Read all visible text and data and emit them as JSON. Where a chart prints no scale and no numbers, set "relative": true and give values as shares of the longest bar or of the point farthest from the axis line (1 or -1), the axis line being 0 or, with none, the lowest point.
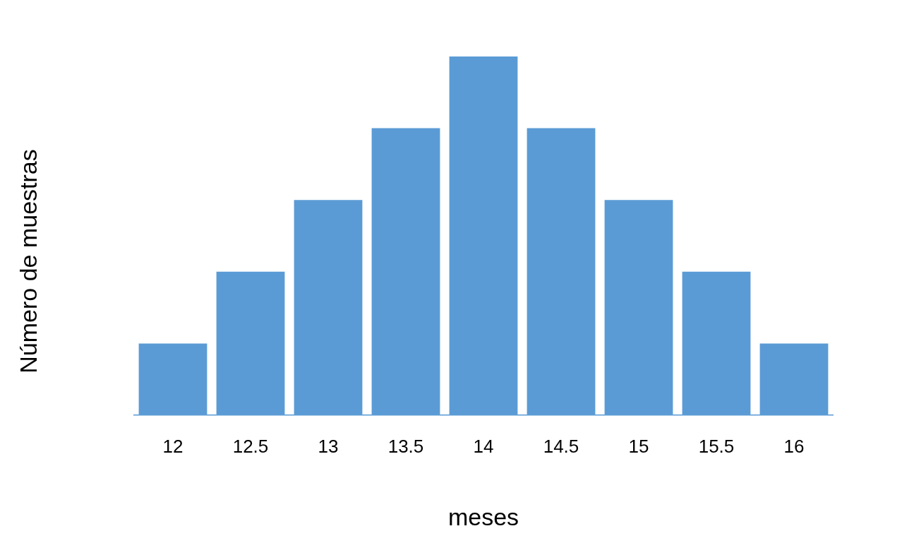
{
  "chart_data": {
    "type": "bar",
    "relative": true,
    "xlabel": "meses",
    "ylabel": "Número de muestras",
    "categories": [
      "12",
      "12.5",
      "13",
      "13.5",
      "14",
      "14.5",
      "15",
      "15.5",
      "16"
    ],
    "values": [
      0.2,
      0.4,
      0.6,
      0.8,
      1,
      0.8,
      0.6,
      0.4,
      0.2
    ],
    "color": "#5b9bd5",
    "grid": false,
    "legend": false
  }
}
